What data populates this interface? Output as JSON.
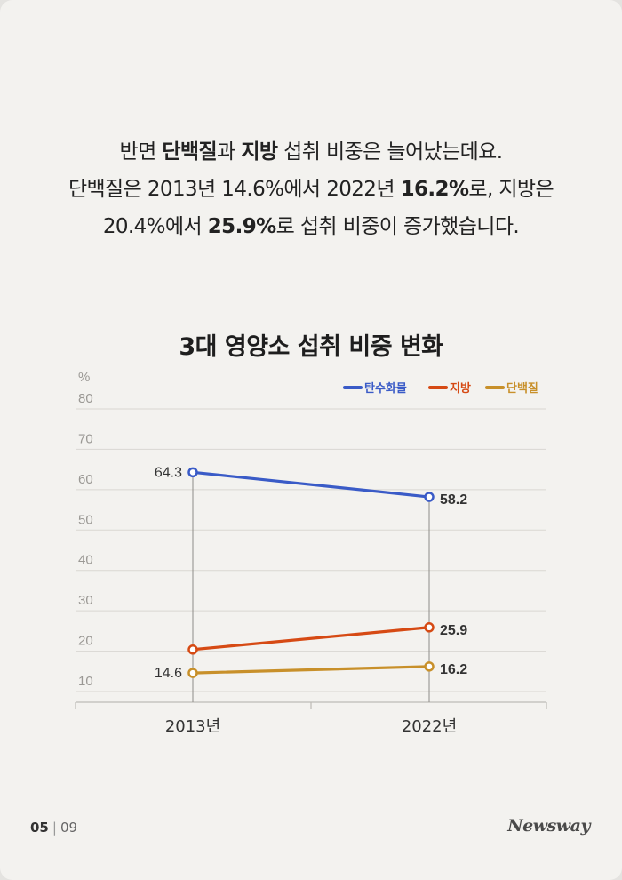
{
  "intro": {
    "line1": [
      {
        "t": "반면 ",
        "b": false
      },
      {
        "t": "단백질",
        "b": true
      },
      {
        "t": "과 ",
        "b": false
      },
      {
        "t": "지방",
        "b": true
      },
      {
        "t": " 섭취 비중은 늘어났는데요.",
        "b": false
      }
    ],
    "line2": [
      {
        "t": "단백질은 2013년 14.6%에서 2022년 ",
        "b": false
      },
      {
        "t": "16.2%",
        "b": true
      },
      {
        "t": "로, 지방은",
        "b": false
      }
    ],
    "line3": [
      {
        "t": "20.4%에서 ",
        "b": false
      },
      {
        "t": "25.9%",
        "b": true
      },
      {
        "t": "로 섭취 비중이 증가했습니다.",
        "b": false
      }
    ]
  },
  "chart_data": {
    "type": "line",
    "title": "3대 영양소 섭취 비중 변화",
    "ylabel": "%",
    "ylim": [
      10,
      80
    ],
    "yticks": [
      10,
      20,
      30,
      40,
      50,
      60,
      70,
      80
    ],
    "categories": [
      "2013년",
      "2022년"
    ],
    "grid": true,
    "legend_position": "top-right",
    "series": [
      {
        "name": "탄수화물",
        "color": "#3a5bc7",
        "values": [
          64.3,
          58.2
        ],
        "labels": [
          "64.3",
          "58.2"
        ]
      },
      {
        "name": "지방",
        "color": "#d64a14",
        "values": [
          20.4,
          25.9
        ],
        "labels": [
          null,
          "25.9"
        ]
      },
      {
        "name": "단백질",
        "color": "#c8902a",
        "values": [
          14.6,
          16.2
        ],
        "labels": [
          "14.6",
          "16.2"
        ]
      }
    ]
  },
  "footer": {
    "page_current": "05",
    "separator": "|",
    "page_total": "09",
    "brand": "Newsway"
  }
}
